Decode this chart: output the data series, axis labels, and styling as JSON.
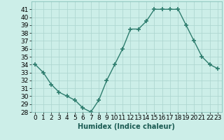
{
  "x": [
    0,
    1,
    2,
    3,
    4,
    5,
    6,
    7,
    8,
    9,
    10,
    11,
    12,
    13,
    14,
    15,
    16,
    17,
    18,
    19,
    20,
    21,
    22,
    23
  ],
  "y": [
    34,
    33,
    31.5,
    30.5,
    30,
    29.5,
    28.5,
    28,
    29.5,
    32,
    34,
    36,
    38.5,
    38.5,
    39.5,
    41,
    41,
    41,
    41,
    39,
    37,
    35,
    34,
    33.5
  ],
  "line_color": "#2e7d6e",
  "marker": "+",
  "marker_size": 4,
  "background_color": "#cceee8",
  "grid_color": "#aad4ce",
  "xlabel": "Humidex (Indice chaleur)",
  "xlabel_fontsize": 7,
  "ylim": [
    28,
    42
  ],
  "xlim": [
    -0.5,
    23.5
  ],
  "yticks": [
    28,
    29,
    30,
    31,
    32,
    33,
    34,
    35,
    36,
    37,
    38,
    39,
    40,
    41
  ],
  "xticks": [
    0,
    1,
    2,
    3,
    4,
    5,
    6,
    7,
    8,
    9,
    10,
    11,
    12,
    13,
    14,
    15,
    16,
    17,
    18,
    19,
    20,
    21,
    22,
    23
  ],
  "tick_fontsize": 6.5
}
